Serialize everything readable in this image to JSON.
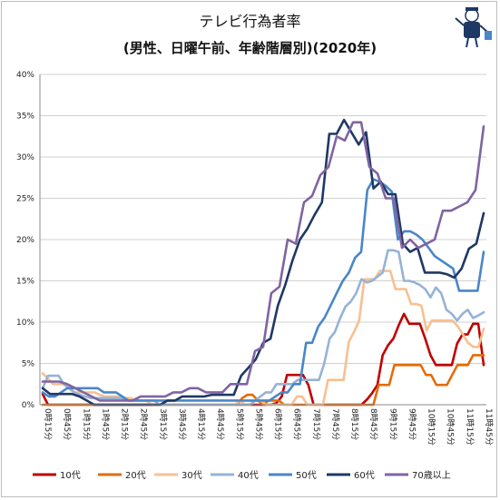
{
  "chart_data": {
    "type": "line",
    "title": "テレビ行為者率",
    "subtitle": "(男性、日曜午前、年齢階層別)(2020年)",
    "ylim": [
      0,
      40
    ],
    "yticks": [
      0,
      5,
      10,
      15,
      20,
      25,
      30,
      35,
      40
    ],
    "ytick_labels": [
      "0%",
      "5%",
      "10%",
      "15%",
      "20%",
      "25%",
      "30%",
      "35%",
      "40%"
    ],
    "x_tick_labels": [
      "0時15分",
      "0時45分",
      "1時15分",
      "1時45分",
      "2時15分",
      "2時45分",
      "3時15分",
      "3時45分",
      "4時15分",
      "4時45分",
      "5時15分",
      "5時45分",
      "6時15分",
      "6時45分",
      "7時15分",
      "7時45分",
      "8時15分",
      "8時45分",
      "9時15分",
      "9時45分",
      "10時15分",
      "10時45分",
      "11時15分",
      "11時45分"
    ],
    "grid": true,
    "legend_position": "bottom",
    "series": [
      {
        "name": "10代",
        "color": "#c00000",
        "values": [
          1.3,
          0,
          0,
          0,
          0,
          0,
          0,
          0,
          0,
          0,
          0,
          0,
          0,
          0,
          0,
          0,
          0,
          0,
          0,
          0,
          0,
          0,
          0,
          0,
          0,
          0,
          0,
          0,
          0,
          0,
          0,
          0,
          0,
          0,
          0,
          0,
          0,
          0,
          0,
          0,
          0,
          0,
          0,
          0,
          0.2,
          1,
          3.6,
          3.6,
          3.6,
          3.6,
          2.4,
          0,
          0,
          0,
          0,
          0,
          0,
          0,
          0,
          0,
          0,
          0.6,
          1.4,
          2.4,
          6,
          7.2,
          8,
          9.6,
          11,
          9.8,
          9.8,
          9.8,
          8,
          6,
          4.8,
          4.8,
          4.8,
          4.8,
          7.4,
          8.5,
          8.5,
          9.8,
          9.8,
          4.8
        ]
      },
      {
        "name": "20代",
        "color": "#e36c09",
        "values": [
          0,
          0,
          0,
          0,
          0,
          0,
          0,
          0,
          0,
          0,
          0,
          0,
          0,
          0,
          0,
          0,
          0,
          0,
          0,
          0,
          0,
          0,
          0,
          0,
          0,
          0,
          0,
          0,
          0,
          0,
          0,
          0,
          0,
          0,
          0,
          0,
          0,
          0,
          0.8,
          1.2,
          1.2,
          0.5,
          0,
          0.5,
          0.5,
          0.5,
          0,
          0,
          0,
          0,
          0,
          0,
          0,
          0,
          0,
          0,
          0,
          0,
          0,
          0,
          0,
          0,
          0,
          0,
          2.4,
          2.4,
          2.4,
          4.8,
          4.8,
          4.8,
          4.8,
          4.8,
          4.8,
          3.6,
          3.6,
          2.4,
          2.4,
          2.4,
          3.6,
          4.8,
          4.8,
          4.8,
          6,
          6,
          6
        ]
      },
      {
        "name": "30代",
        "color": "#f8c090",
        "values": [
          3.8,
          3.2,
          2.5,
          2.5,
          2.5,
          2,
          1.5,
          1.5,
          1.5,
          1.5,
          1.5,
          1.2,
          1,
          1,
          1,
          1,
          0.8,
          0.8,
          0.5,
          0.5,
          0.5,
          0,
          0,
          0,
          0,
          0,
          0,
          0,
          0,
          0,
          0,
          0,
          0,
          0,
          0,
          0,
          0,
          0,
          0.5,
          0,
          0,
          0.5,
          0.5,
          0,
          0,
          0,
          0,
          0,
          0,
          1,
          1,
          0,
          0,
          0,
          0,
          3,
          3,
          3,
          3,
          7.6,
          8.8,
          10.2,
          15.2,
          15.2,
          15.2,
          16.2,
          16.2,
          16.2,
          14,
          14,
          14,
          12.2,
          12.2,
          12,
          9,
          10.2,
          10.2,
          10.2,
          10.2,
          10.2,
          9.5,
          8.5,
          7.5,
          7,
          7,
          9.2
        ]
      },
      {
        "name": "40代",
        "color": "#95b3d7",
        "values": [
          2,
          3.5,
          3.5,
          3.5,
          2.5,
          2,
          1.5,
          1.2,
          1,
          0.8,
          0.8,
          0.8,
          0.8,
          0.8,
          0.8,
          0.8,
          0.5,
          0.5,
          0.5,
          0.5,
          0.5,
          0.5,
          0,
          0,
          0,
          0,
          0,
          0,
          0,
          0,
          0,
          0,
          0,
          0,
          0,
          0,
          0,
          0,
          0,
          0,
          0.5,
          1,
          1.5,
          1.5,
          2.5,
          2.5,
          2.5,
          2.5,
          3,
          3,
          3,
          3,
          3,
          5,
          8,
          8.8,
          10.5,
          11.9,
          12.5,
          13.5,
          15.2,
          14.8,
          15,
          15.5,
          16,
          18.7,
          18.7,
          18.5,
          15,
          15,
          14.8,
          14.5,
          14,
          13,
          14.2,
          13.5,
          11.5,
          11,
          10.2,
          11,
          11.5,
          10.5,
          10.8,
          11.2
        ]
      },
      {
        "name": "50代",
        "color": "#4a86c8",
        "values": [
          1.5,
          1,
          1,
          1.5,
          2,
          2,
          2,
          2,
          2,
          2,
          1.5,
          1.5,
          1.5,
          1,
          0.5,
          0.5,
          0.5,
          0.5,
          0.5,
          0.5,
          0.5,
          0.5,
          0.5,
          0.5,
          0.5,
          0.5,
          0.5,
          0.5,
          0.5,
          0.5,
          0.5,
          0.5,
          0.5,
          0.5,
          0.5,
          0.5,
          0.5,
          0.5,
          1,
          1.5,
          1.5,
          2.5,
          2.5,
          7.5,
          7.5,
          9.5,
          10.5,
          12,
          13.5,
          15,
          16,
          17.8,
          18.5,
          26,
          27.3,
          27,
          26.5,
          25.8,
          20,
          21,
          21,
          20.6,
          20,
          19,
          18,
          17.5,
          17,
          16.5,
          13.8,
          13.8,
          13.8,
          13.8,
          18.5
        ]
      },
      {
        "name": "60代",
        "color": "#1f3864",
        "values": [
          2,
          1.3,
          1.3,
          1.3,
          1.3,
          1,
          0.5,
          0,
          0,
          0,
          0,
          0,
          0,
          0,
          0,
          0,
          0,
          0.5,
          0.5,
          1,
          1,
          1,
          1,
          1.2,
          1.2,
          1.2,
          1.2,
          3.5,
          4.5,
          5.5,
          7.5,
          8,
          12,
          14.5,
          17.5,
          20,
          21.3,
          23,
          24.5,
          32.8,
          32.8,
          34.5,
          33,
          31.5,
          33,
          26.2,
          27,
          25.5,
          25.5,
          19.5,
          18.5,
          19,
          16,
          16,
          16,
          15.8,
          15.4,
          16.5,
          18.9,
          19.5,
          23.2
        ]
      },
      {
        "name": "70歳以上",
        "color": "#8064a2",
        "values": [
          2.8,
          2.8,
          2.8,
          2.5,
          2,
          1.5,
          1,
          0.5,
          0.5,
          0.5,
          0.5,
          0.5,
          1,
          1,
          1,
          1,
          1.5,
          1.5,
          2,
          2,
          1.5,
          1.5,
          1.5,
          2.5,
          2.5,
          2.5,
          6.5,
          7,
          13.5,
          14.3,
          20,
          19.5,
          24.5,
          25.3,
          27.8,
          28.8,
          32.5,
          32,
          34.2,
          34.2,
          28.8,
          28,
          25,
          25,
          19,
          20,
          19,
          19.5,
          20,
          23.5,
          23.5,
          24,
          24.5,
          26,
          33.7
        ]
      }
    ],
    "legend": [
      "10代",
      "20代",
      "30代",
      "40代",
      "50代",
      "60代",
      "70歳以上"
    ]
  }
}
